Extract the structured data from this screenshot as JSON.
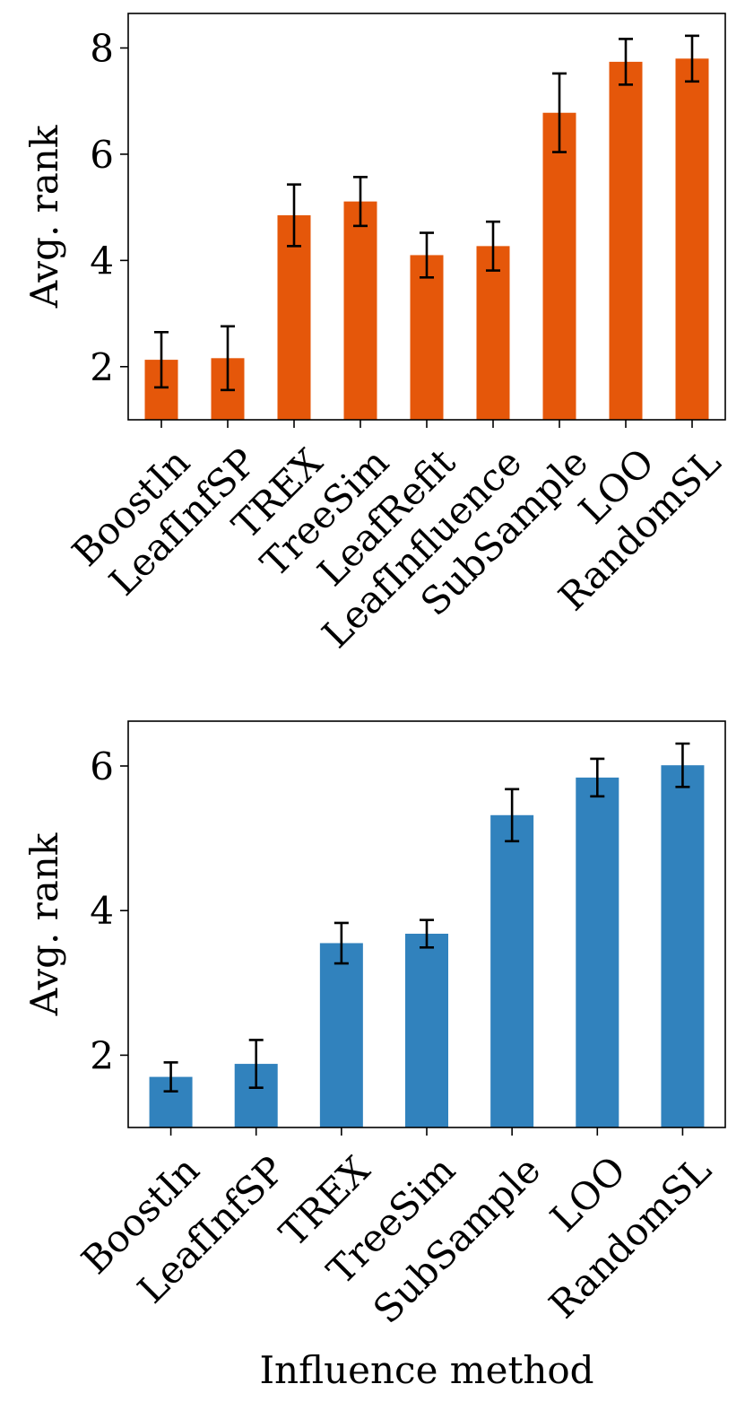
{
  "chart_data": [
    {
      "type": "bar",
      "title": "",
      "xlabel": "",
      "ylabel": "Avg. rank",
      "color": "#e5570a",
      "categories": [
        "BoostIn",
        "LeafInfSP",
        "TREX",
        "TreeSim",
        "LeafRefit",
        "LeafInfluence",
        "SubSample",
        "LOO",
        "RandomSL"
      ],
      "values": [
        2.13,
        2.16,
        4.85,
        5.11,
        4.1,
        4.27,
        6.78,
        7.74,
        7.8
      ],
      "errors": [
        0.52,
        0.6,
        0.58,
        0.46,
        0.42,
        0.46,
        0.74,
        0.43,
        0.43
      ],
      "ylim": [
        1.0,
        8.65
      ],
      "yticks": [
        2,
        4,
        6,
        8
      ],
      "ytick_labels": [
        "2",
        "4",
        "6",
        "8"
      ]
    },
    {
      "type": "bar",
      "title": "",
      "xlabel": "Influence method",
      "ylabel": "Avg. rank",
      "color": "#3182bd",
      "categories": [
        "BoostIn",
        "LeafInfSP",
        "TREX",
        "TreeSim",
        "SubSample",
        "LOO",
        "RandomSL"
      ],
      "values": [
        1.7,
        1.88,
        3.55,
        3.68,
        5.32,
        5.84,
        6.01
      ],
      "errors": [
        0.2,
        0.33,
        0.28,
        0.19,
        0.36,
        0.26,
        0.3
      ],
      "ylim": [
        1.0,
        6.62
      ],
      "yticks": [
        2,
        4,
        6
      ],
      "ytick_labels": [
        "2",
        "4",
        "6"
      ]
    }
  ]
}
